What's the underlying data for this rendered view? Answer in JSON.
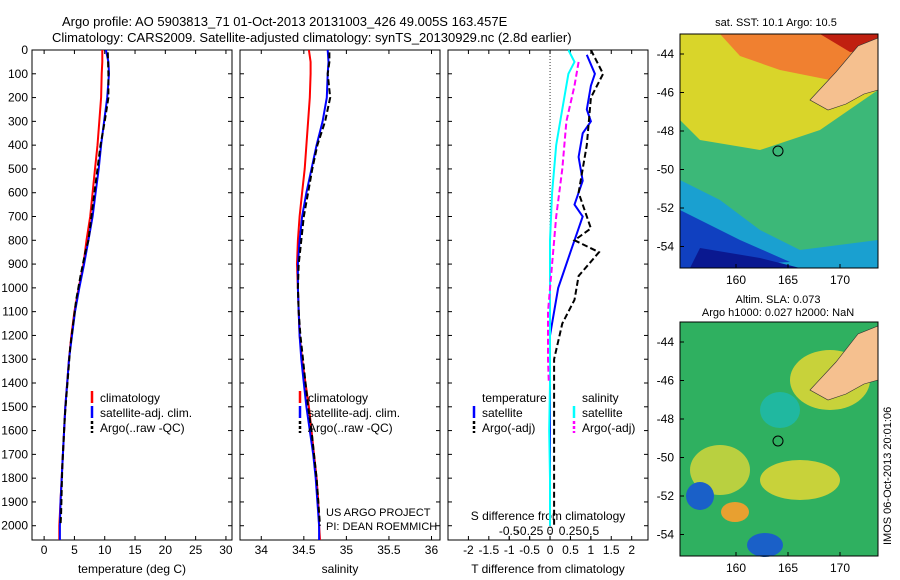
{
  "header": {
    "line1": "Argo profile: AO 5903813_71 01-Oct-2013 20131003_426 49.005S 163.457E",
    "line2": "Climatology: CARS2009. Satellite-adjusted climatology: synTS_20130929.nc (2.8d earlier)"
  },
  "credit": {
    "line1": "US ARGO PROJECT",
    "line2": "PI: DEAN ROEMMICH"
  },
  "sidebar": {
    "stamp": "IMOS 06-Oct-2013 20:01:06"
  },
  "colors": {
    "climatology": "#ff0000",
    "satellite": "#0000ff",
    "argo": "#000000",
    "sal_satellite": "#00ffff",
    "sal_argo": "#ff00ff",
    "land": "#f5c08f"
  },
  "maps": {
    "sst": {
      "title": "sat. SST: 10.1 Argo: 10.5",
      "lat_ticks": [
        "-44",
        "-46",
        "-48",
        "-50",
        "-52",
        "-54"
      ],
      "lon_ticks": [
        "160",
        "165",
        "170"
      ]
    },
    "sla": {
      "title1": "Altim. SLA: 0.073",
      "title2": "Argo h1000: 0.027 h2000: NaN",
      "lat_ticks": [
        "-44",
        "-46",
        "-48",
        "-50",
        "-52",
        "-54"
      ],
      "lon_ticks": [
        "160",
        "165",
        "170"
      ]
    }
  },
  "chart_data": [
    {
      "type": "line",
      "xlabel": "temperature (deg C)",
      "xlim": [
        -2,
        31
      ],
      "xticks": [
        0,
        5,
        10,
        15,
        20,
        25,
        30
      ],
      "ylim": [
        2060,
        0
      ],
      "yticks": [
        0,
        100,
        200,
        300,
        400,
        500,
        600,
        700,
        800,
        900,
        1000,
        1100,
        1200,
        1300,
        1400,
        1500,
        1600,
        1700,
        1800,
        1900,
        2000
      ],
      "legend": [
        "climatology",
        "satellite-adj. clim.",
        "Argo(..raw -QC)"
      ],
      "series": [
        {
          "name": "climatology",
          "color": "#ff0000",
          "dash": "",
          "points": [
            [
              9.6,
              0
            ],
            [
              9.6,
              50
            ],
            [
              9.5,
              100
            ],
            [
              9.4,
              200
            ],
            [
              9.1,
              300
            ],
            [
              8.8,
              400
            ],
            [
              8.4,
              500
            ],
            [
              8.0,
              600
            ],
            [
              7.6,
              700
            ],
            [
              7.0,
              800
            ],
            [
              6.5,
              900
            ],
            [
              5.7,
              1000
            ],
            [
              5.0,
              1100
            ],
            [
              4.5,
              1200
            ],
            [
              4.1,
              1300
            ],
            [
              3.8,
              1400
            ],
            [
              3.5,
              1500
            ],
            [
              3.3,
              1600
            ],
            [
              3.1,
              1700
            ],
            [
              2.9,
              1800
            ],
            [
              2.7,
              1900
            ],
            [
              2.5,
              2000
            ],
            [
              2.5,
              2060
            ]
          ]
        },
        {
          "name": "satellite-adj. clim.",
          "color": "#0000ff",
          "dash": "",
          "points": [
            [
              10.2,
              0
            ],
            [
              10.6,
              50
            ],
            [
              10.7,
              100
            ],
            [
              10.4,
              200
            ],
            [
              9.9,
              300
            ],
            [
              9.4,
              400
            ],
            [
              9.0,
              500
            ],
            [
              8.5,
              600
            ],
            [
              8.0,
              700
            ],
            [
              7.3,
              800
            ],
            [
              6.6,
              900
            ],
            [
              5.8,
              1000
            ],
            [
              5.1,
              1100
            ],
            [
              4.6,
              1200
            ],
            [
              4.1,
              1300
            ],
            [
              3.8,
              1400
            ],
            [
              3.5,
              1500
            ],
            [
              3.3,
              1600
            ],
            [
              3.1,
              1700
            ],
            [
              2.9,
              1800
            ],
            [
              2.7,
              1900
            ],
            [
              2.6,
              2000
            ],
            [
              2.6,
              2060
            ]
          ]
        },
        {
          "name": "Argo(..raw -QC)",
          "color": "#000000",
          "dash": "6,3",
          "points": [
            [
              10.5,
              10
            ],
            [
              10.6,
              100
            ],
            [
              10.6,
              200
            ],
            [
              10.0,
              300
            ],
            [
              9.3,
              400
            ],
            [
              8.8,
              500
            ],
            [
              8.3,
              600
            ],
            [
              7.8,
              700
            ],
            [
              7.3,
              800
            ],
            [
              6.8,
              850
            ],
            [
              6.4,
              900
            ],
            [
              6.0,
              950
            ],
            [
              5.3,
              1050
            ],
            [
              4.8,
              1150
            ],
            [
              4.3,
              1250
            ],
            [
              4.0,
              1350
            ],
            [
              3.7,
              1450
            ],
            [
              3.4,
              1550
            ],
            [
              3.2,
              1650
            ],
            [
              3.0,
              1750
            ],
            [
              2.9,
              1850
            ],
            [
              2.8,
              1950
            ],
            [
              2.7,
              2000
            ]
          ]
        }
      ]
    },
    {
      "type": "line",
      "xlabel": "salinity",
      "xlim": [
        33.75,
        36.1
      ],
      "xticks": [
        34,
        34.5,
        35,
        35.5,
        36
      ],
      "ylim": [
        2060,
        0
      ],
      "legend": [
        "climatology",
        "satellite-adj. clim.",
        "Argo(..raw -QC)"
      ],
      "series": [
        {
          "name": "climatology",
          "color": "#ff0000",
          "dash": "",
          "points": [
            [
              34.56,
              0
            ],
            [
              34.58,
              50
            ],
            [
              34.58,
              100
            ],
            [
              34.57,
              200
            ],
            [
              34.55,
              300
            ],
            [
              34.53,
              400
            ],
            [
              34.51,
              500
            ],
            [
              34.48,
              600
            ],
            [
              34.45,
              700
            ],
            [
              34.43,
              800
            ],
            [
              34.42,
              900
            ],
            [
              34.43,
              1000
            ],
            [
              34.44,
              1100
            ],
            [
              34.45,
              1200
            ],
            [
              34.48,
              1300
            ],
            [
              34.52,
              1400
            ],
            [
              34.56,
              1500
            ],
            [
              34.59,
              1600
            ],
            [
              34.62,
              1700
            ],
            [
              34.65,
              1800
            ],
            [
              34.67,
              1900
            ],
            [
              34.68,
              2000
            ],
            [
              34.69,
              2060
            ]
          ]
        },
        {
          "name": "satellite-adj. clim.",
          "color": "#0000ff",
          "dash": "",
          "points": [
            [
              34.78,
              0
            ],
            [
              34.79,
              50
            ],
            [
              34.78,
              100
            ],
            [
              34.77,
              200
            ],
            [
              34.72,
              300
            ],
            [
              34.65,
              400
            ],
            [
              34.59,
              500
            ],
            [
              34.53,
              600
            ],
            [
              34.48,
              700
            ],
            [
              34.45,
              800
            ],
            [
              34.43,
              900
            ],
            [
              34.43,
              1000
            ],
            [
              34.44,
              1100
            ],
            [
              34.45,
              1200
            ],
            [
              34.47,
              1300
            ],
            [
              34.5,
              1400
            ],
            [
              34.53,
              1500
            ],
            [
              34.57,
              1600
            ],
            [
              34.61,
              1700
            ],
            [
              34.64,
              1800
            ],
            [
              34.66,
              1900
            ],
            [
              34.68,
              2000
            ],
            [
              34.68,
              2060
            ]
          ]
        },
        {
          "name": "Argo(..raw -QC)",
          "color": "#000000",
          "dash": "6,3",
          "points": [
            [
              34.8,
              10
            ],
            [
              34.8,
              50
            ],
            [
              34.78,
              100
            ],
            [
              34.81,
              200
            ],
            [
              34.75,
              300
            ],
            [
              34.66,
              400
            ],
            [
              34.6,
              500
            ],
            [
              34.55,
              600
            ],
            [
              34.5,
              700
            ],
            [
              34.47,
              800
            ],
            [
              34.44,
              900
            ],
            [
              34.43,
              1000
            ],
            [
              34.44,
              1100
            ],
            [
              34.46,
              1200
            ],
            [
              34.49,
              1300
            ],
            [
              34.52,
              1400
            ],
            [
              34.55,
              1500
            ],
            [
              34.59,
              1600
            ],
            [
              34.62,
              1700
            ],
            [
              34.65,
              1800
            ],
            [
              34.67,
              1900
            ],
            [
              34.69,
              2000
            ]
          ]
        }
      ]
    },
    {
      "type": "line",
      "xlabel": "T difference from climatology",
      "xlabel2": "S difference from climatology",
      "xlim": [
        -2.5,
        2.4
      ],
      "xticks": [
        -2,
        -1.5,
        -1,
        -0.5,
        0,
        0.5,
        1,
        1.5,
        2
      ],
      "xticklabels": [
        "-2",
        "-1.5",
        "-1",
        "-0.5",
        "0",
        "0.5",
        "1",
        "1.5",
        "2"
      ],
      "s_ticks": [
        -0.5,
        -0.25,
        0,
        0.25,
        0.5
      ],
      "s_ticklabels": [
        "-0.5",
        "-0.25",
        "0",
        "0.25",
        "0.5"
      ],
      "ylim": [
        2060,
        0
      ],
      "legend_titles": [
        "temperature",
        "salinity"
      ],
      "legend": [
        "satellite",
        "Argo(-adj)",
        "satellite",
        "Argo(-adj)"
      ],
      "series": [
        {
          "name": "satellite",
          "color": "#0000ff",
          "dash": "",
          "points": [
            [
              0.9,
              20
            ],
            [
              1.1,
              100
            ],
            [
              1.0,
              150
            ],
            [
              0.9,
              250
            ],
            [
              1.0,
              300
            ],
            [
              0.8,
              350
            ],
            [
              0.7,
              450
            ],
            [
              0.8,
              550
            ],
            [
              0.6,
              650
            ],
            [
              0.8,
              700
            ],
            [
              0.7,
              750
            ],
            [
              0.5,
              850
            ],
            [
              0.3,
              950
            ],
            [
              0.2,
              1000
            ],
            [
              0.1,
              1100
            ],
            [
              0.0,
              1200
            ],
            [
              0.0,
              1300
            ],
            [
              0.0,
              1500
            ],
            [
              0.0,
              2000
            ]
          ]
        },
        {
          "name": "Argo(-adj)",
          "color": "#000000",
          "dash": "6,3",
          "points": [
            [
              1.0,
              0
            ],
            [
              1.3,
              100
            ],
            [
              1.0,
              200
            ],
            [
              0.9,
              400
            ],
            [
              0.7,
              600
            ],
            [
              1.0,
              750
            ],
            [
              0.6,
              800
            ],
            [
              1.2,
              850
            ],
            [
              0.7,
              950
            ],
            [
              0.6,
              1050
            ],
            [
              0.3,
              1150
            ],
            [
              0.1,
              1300
            ],
            [
              0.1,
              1500
            ],
            [
              0.1,
              2000
            ]
          ]
        },
        {
          "name": "satellite",
          "color": "#00ffff",
          "dash": "",
          "points": [
            [
              0.45,
              0
            ],
            [
              0.6,
              50
            ],
            [
              0.45,
              100
            ],
            [
              0.35,
              200
            ],
            [
              0.25,
              300
            ],
            [
              0.15,
              400
            ],
            [
              0.05,
              600
            ],
            [
              0.0,
              800
            ],
            [
              0.0,
              1200
            ],
            [
              0.0,
              1400
            ],
            [
              -0.02,
              1600
            ],
            [
              0.0,
              1800
            ],
            [
              0.0,
              2000
            ]
          ]
        },
        {
          "name": "Argo(-adj)",
          "color": "#ff00ff",
          "dash": "6,3",
          "points": [
            [
              0.7,
              50
            ],
            [
              0.6,
              150
            ],
            [
              0.4,
              300
            ],
            [
              0.3,
              500
            ],
            [
              0.15,
              700
            ],
            [
              0.05,
              900
            ],
            [
              -0.05,
              1100
            ],
            [
              -0.05,
              1300
            ],
            [
              -0.03,
              1400
            ]
          ]
        }
      ]
    }
  ]
}
